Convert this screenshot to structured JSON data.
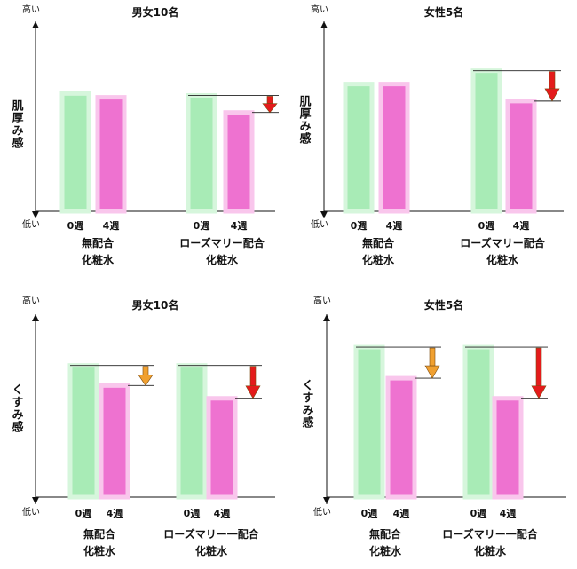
{
  "chart_data": [
    {
      "type": "bar",
      "title": "男女10名",
      "ylabel": "肌厚み感",
      "y_high_label": "高い",
      "y_low_label": "低い",
      "groups": [
        {
          "name_lines": [
            "無配合",
            "化粧水"
          ],
          "bars": [
            {
              "label": "0週",
              "value": 0.62
            },
            {
              "label": "4週",
              "value": 0.6
            }
          ],
          "arrow": null
        },
        {
          "name_lines": [
            "ローズマリー配合",
            "化粧水"
          ],
          "bars": [
            {
              "label": "0週",
              "value": 0.61
            },
            {
              "label": "4週",
              "value": 0.52
            }
          ],
          "arrow": "red"
        }
      ]
    },
    {
      "type": "bar",
      "title": "女性5名",
      "ylabel": "肌厚み感",
      "y_high_label": "高い",
      "y_low_label": "低い",
      "groups": [
        {
          "name_lines": [
            "無配合",
            "化粧水"
          ],
          "bars": [
            {
              "label": "0週",
              "value": 0.67
            },
            {
              "label": "4週",
              "value": 0.67
            }
          ],
          "arrow": null
        },
        {
          "name_lines": [
            "ローズマリー配合",
            "化粧水"
          ],
          "bars": [
            {
              "label": "0週",
              "value": 0.74
            },
            {
              "label": "4週",
              "value": 0.58
            }
          ],
          "arrow": "red"
        }
      ]
    },
    {
      "type": "bar",
      "title": "男女10名",
      "ylabel": "くすみ感",
      "y_high_label": "高い",
      "y_low_label": "低い",
      "groups": [
        {
          "name_lines": [
            "無配合",
            "化粧水"
          ],
          "bars": [
            {
              "label": "0週",
              "value": 0.72
            },
            {
              "label": "4週",
              "value": 0.61
            }
          ],
          "arrow": "orange"
        },
        {
          "name_lines": [
            "ローズマリー一配合",
            "化粧水"
          ],
          "bars": [
            {
              "label": "0週",
              "value": 0.72
            },
            {
              "label": "4週",
              "value": 0.54
            }
          ],
          "arrow": "red"
        }
      ]
    },
    {
      "type": "bar",
      "title": "女性5名",
      "ylabel": "くすみ感",
      "y_high_label": "高い",
      "y_low_label": "低い",
      "groups": [
        {
          "name_lines": [
            "無配合",
            "化粧水"
          ],
          "bars": [
            {
              "label": "0週",
              "value": 0.82
            },
            {
              "label": "4週",
              "value": 0.65
            }
          ],
          "arrow": "orange"
        },
        {
          "name_lines": [
            "ローズマリー一配合",
            "化粧水"
          ],
          "bars": [
            {
              "label": "0週",
              "value": 0.82
            },
            {
              "label": "4週",
              "value": 0.54
            }
          ],
          "arrow": "red"
        }
      ]
    }
  ],
  "colors": {
    "bar_0w_fill": "#a8ebb6",
    "bar_0w_edge": "#d6f6dc",
    "bar_4w_fill": "#ee72d0",
    "bar_4w_edge": "#f9c6ec",
    "arrow_red": "#e41b1b",
    "arrow_orange": "#f0a030",
    "axis": "#111111"
  }
}
